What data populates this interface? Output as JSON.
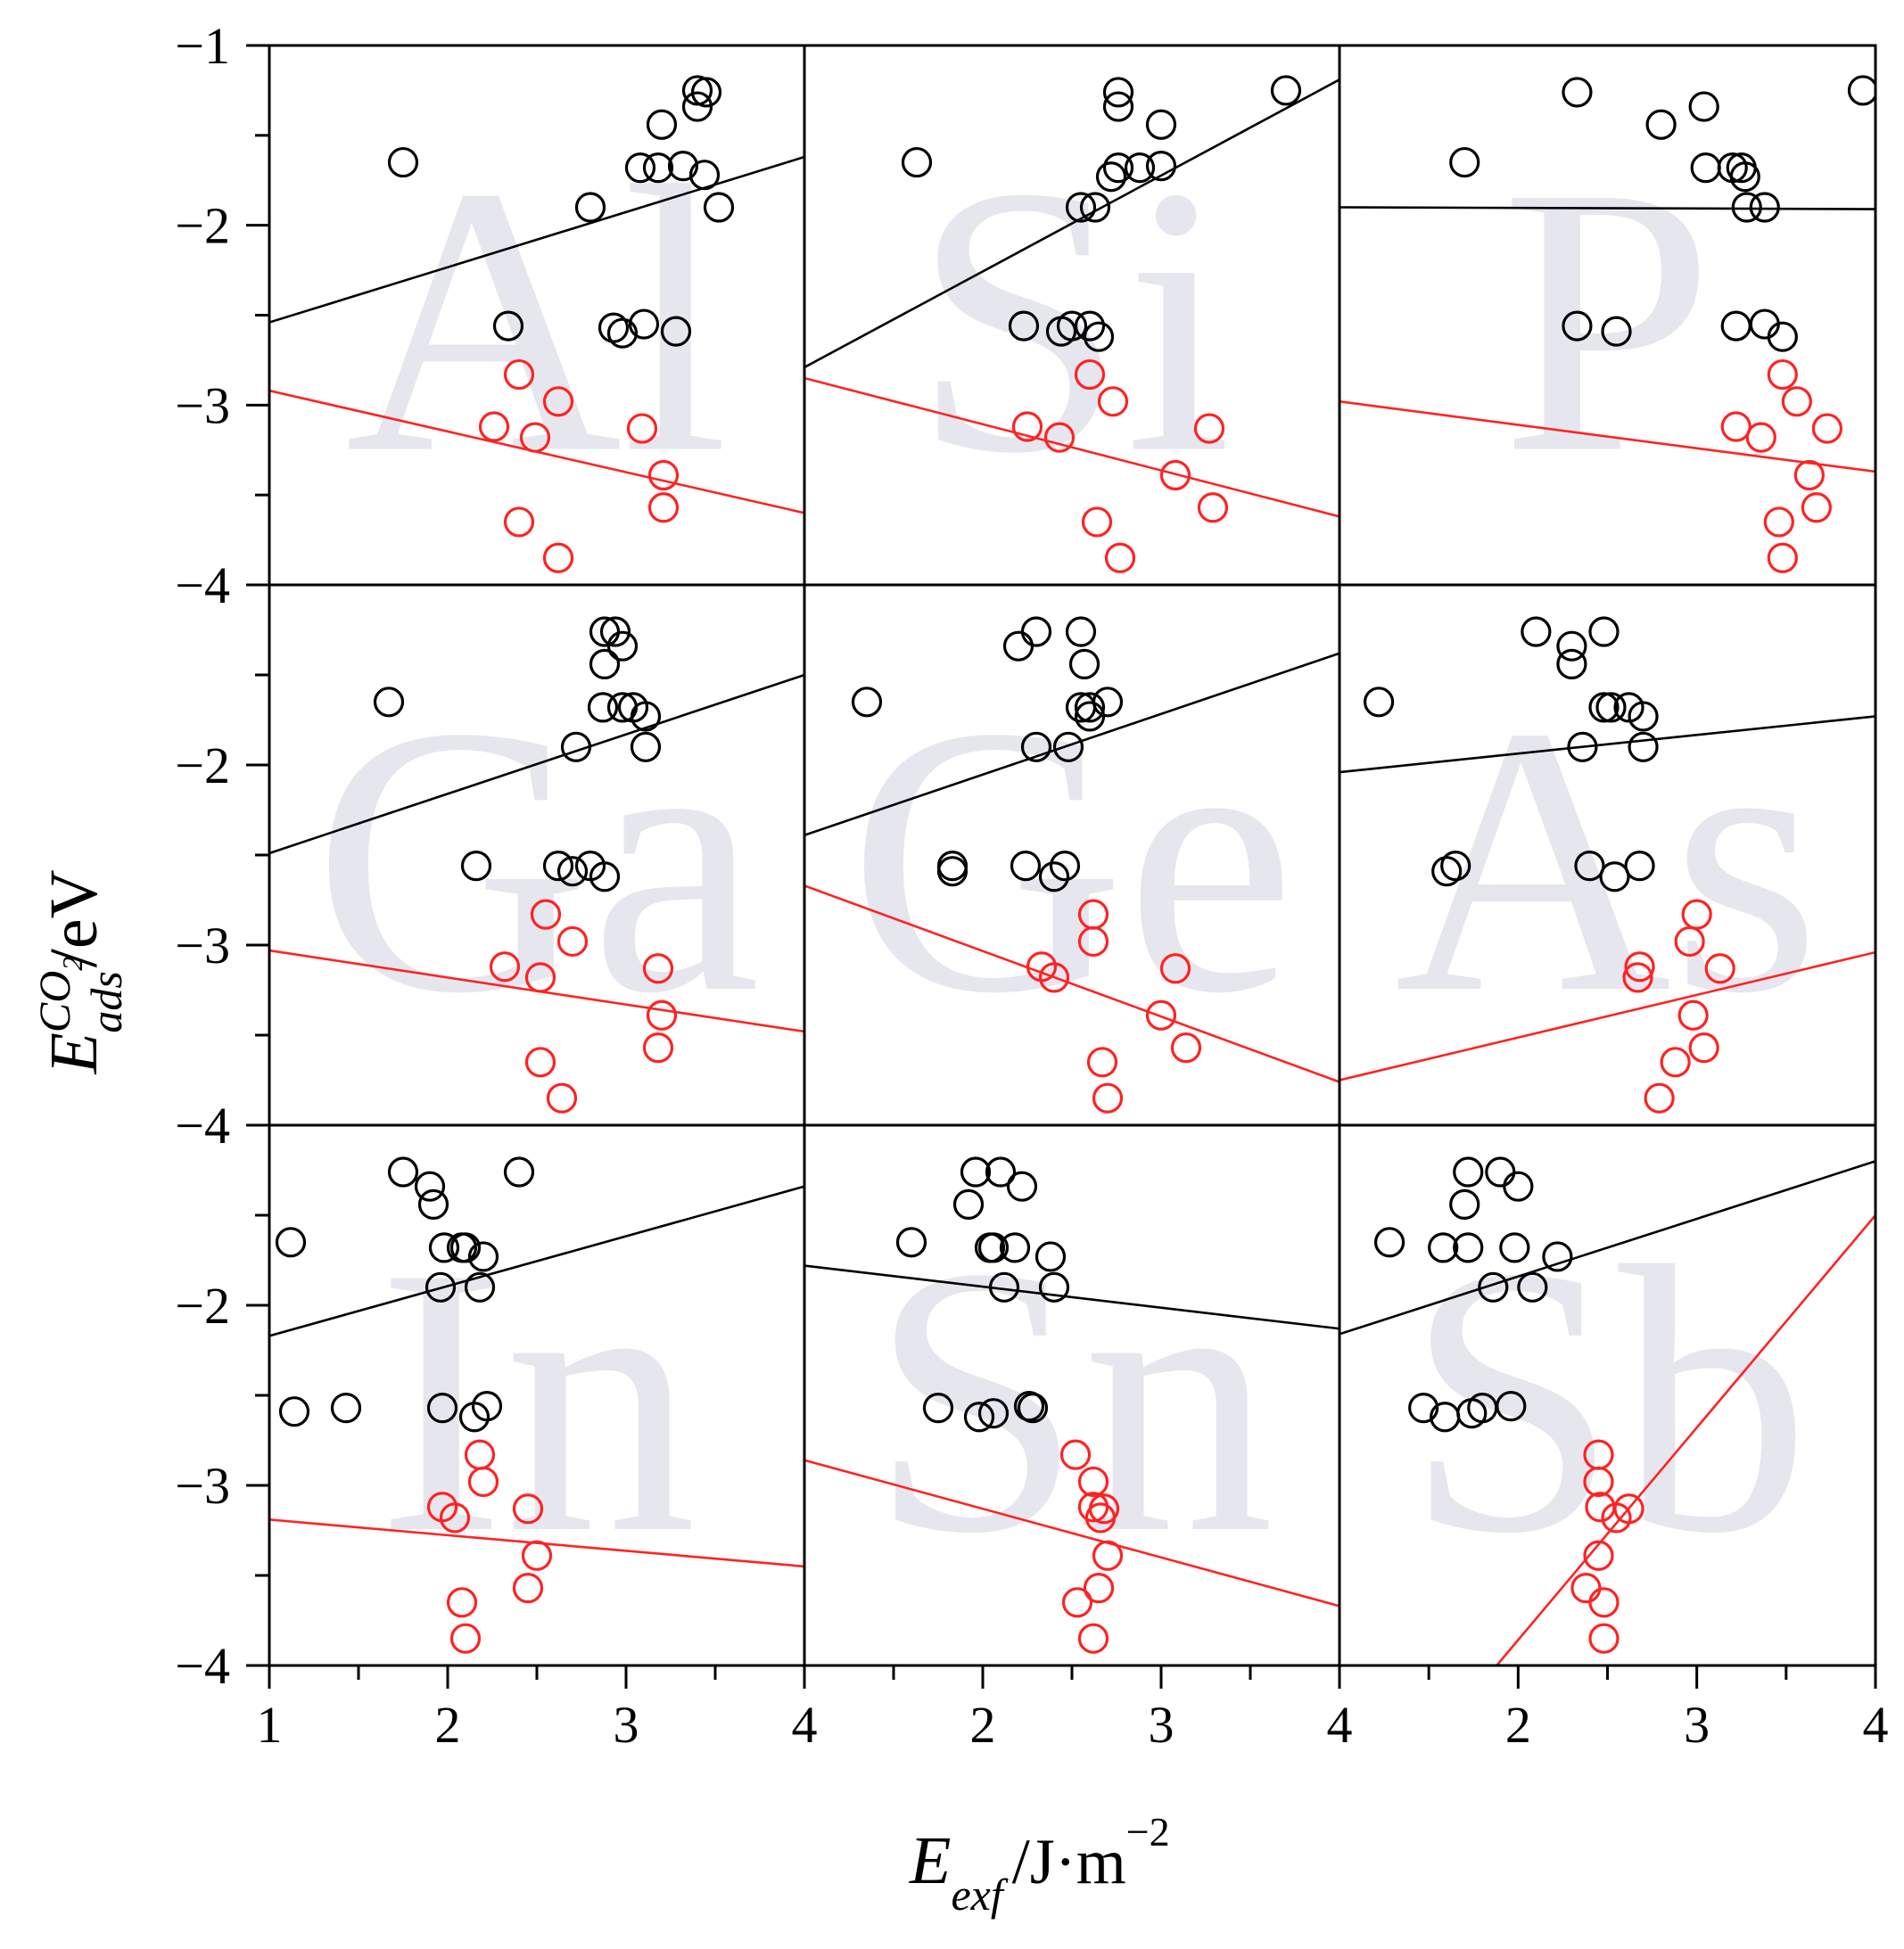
{
  "chart_data": {
    "type": "scatter",
    "layout": "3x3 grid of panels",
    "ylabel": {
      "base": "E",
      "superscript": "CO",
      "superscript_sub": "2",
      "subscript": "ads",
      "unit": "/eV"
    },
    "xlabel": {
      "base": "E",
      "subscript": "exf",
      "unit": "/J·m",
      "unit_exponent": "−2"
    },
    "ylim": [
      -4,
      -1
    ],
    "y_ticks": [
      "−1",
      "−2",
      "−3",
      "−4"
    ],
    "x_ticks": [
      "1",
      "2",
      "3",
      "4"
    ],
    "series_colors": {
      "black": "#000000",
      "red": "#ff2222"
    },
    "panels": [
      {
        "label": "Al",
        "xlim": [
          1,
          4
        ],
        "black_points": [
          [
            1.75,
            -1.65
          ],
          [
            2.8,
            -1.9
          ],
          [
            3.08,
            -1.68
          ],
          [
            3.18,
            -1.68
          ],
          [
            3.2,
            -1.44
          ],
          [
            3.32,
            -1.67
          ],
          [
            3.4,
            -1.34
          ],
          [
            3.4,
            -1.25
          ],
          [
            3.45,
            -1.26
          ],
          [
            3.44,
            -1.72
          ],
          [
            3.52,
            -1.9
          ],
          [
            2.34,
            -2.56
          ],
          [
            2.93,
            -2.57
          ],
          [
            2.98,
            -2.6
          ],
          [
            3.1,
            -2.55
          ],
          [
            3.28,
            -2.59
          ]
        ],
        "red_points": [
          [
            2.4,
            -2.83
          ],
          [
            2.62,
            -2.98
          ],
          [
            2.26,
            -3.12
          ],
          [
            2.49,
            -3.18
          ],
          [
            3.09,
            -3.13
          ],
          [
            3.21,
            -3.39
          ],
          [
            3.21,
            -3.57
          ],
          [
            2.4,
            -3.65
          ],
          [
            2.62,
            -3.85
          ]
        ],
        "black_fit": [
          [
            1,
            -2.54
          ],
          [
            4,
            -1.62
          ]
        ],
        "red_fit": [
          [
            1,
            -2.92
          ],
          [
            4,
            -3.6
          ]
        ]
      },
      {
        "label": "Si",
        "xlim": [
          1,
          4
        ],
        "black_points": [
          [
            1.63,
            -1.65
          ],
          [
            2.55,
            -1.9
          ],
          [
            2.63,
            -1.9
          ],
          [
            2.72,
            -1.73
          ],
          [
            2.76,
            -1.68
          ],
          [
            2.76,
            -1.34
          ],
          [
            2.76,
            -1.26
          ],
          [
            2.88,
            -1.68
          ],
          [
            3,
            -1.44
          ],
          [
            3,
            -1.67
          ],
          [
            3.7,
            -1.25
          ],
          [
            2.23,
            -2.56
          ],
          [
            2.44,
            -2.59
          ],
          [
            2.5,
            -2.56
          ],
          [
            2.6,
            -2.56
          ],
          [
            2.65,
            -2.62
          ]
        ],
        "red_points": [
          [
            2.6,
            -2.83
          ],
          [
            2.73,
            -2.98
          ],
          [
            2.25,
            -3.12
          ],
          [
            2.43,
            -3.18
          ],
          [
            3.27,
            -3.13
          ],
          [
            3.08,
            -3.39
          ],
          [
            3.29,
            -3.57
          ],
          [
            2.64,
            -3.65
          ],
          [
            2.77,
            -3.85
          ]
        ],
        "black_fit": [
          [
            1,
            -2.79
          ],
          [
            4,
            -1.19
          ]
        ],
        "red_fit": [
          [
            1,
            -2.85
          ],
          [
            4,
            -3.62
          ]
        ]
      },
      {
        "label": "P",
        "xlim": [
          1,
          4
        ],
        "black_points": [
          [
            1.7,
            -1.65
          ],
          [
            2.33,
            -1.26
          ],
          [
            2.8,
            -1.44
          ],
          [
            3.04,
            -1.34
          ],
          [
            3.05,
            -1.68
          ],
          [
            3.2,
            -1.68
          ],
          [
            3.25,
            -1.68
          ],
          [
            3.27,
            -1.73
          ],
          [
            3.28,
            -1.9
          ],
          [
            3.38,
            -1.9
          ],
          [
            3.93,
            -1.25
          ],
          [
            2.33,
            -2.56
          ],
          [
            2.55,
            -2.59
          ],
          [
            3.22,
            -2.56
          ],
          [
            3.38,
            -2.55
          ],
          [
            3.48,
            -2.62
          ]
        ],
        "red_points": [
          [
            3.48,
            -2.83
          ],
          [
            3.56,
            -2.98
          ],
          [
            3.22,
            -3.12
          ],
          [
            3.36,
            -3.18
          ],
          [
            3.73,
            -3.13
          ],
          [
            3.63,
            -3.39
          ],
          [
            3.67,
            -3.57
          ],
          [
            3.46,
            -3.65
          ],
          [
            3.48,
            -3.85
          ]
        ],
        "black_fit": [
          [
            1,
            -1.9
          ],
          [
            4,
            -1.91
          ]
        ],
        "red_fit": [
          [
            1,
            -2.98
          ],
          [
            4,
            -3.37
          ]
        ]
      },
      {
        "label": "Ga",
        "xlim": [
          1,
          4
        ],
        "black_points": [
          [
            1.67,
            -1.65
          ],
          [
            2.72,
            -1.9
          ],
          [
            2.88,
            -1.26
          ],
          [
            2.88,
            -1.44
          ],
          [
            2.87,
            -1.68
          ],
          [
            2.94,
            -1.26
          ],
          [
            2.98,
            -1.34
          ],
          [
            2.98,
            -1.68
          ],
          [
            3.04,
            -1.68
          ],
          [
            3.11,
            -1.73
          ],
          [
            3.11,
            -1.9
          ],
          [
            2.16,
            -2.56
          ],
          [
            2.62,
            -2.56
          ],
          [
            2.7,
            -2.59
          ],
          [
            2.8,
            -2.56
          ],
          [
            2.88,
            -2.62
          ]
        ],
        "red_points": [
          [
            2.55,
            -2.83
          ],
          [
            2.7,
            -2.98
          ],
          [
            2.32,
            -3.12
          ],
          [
            2.52,
            -3.18
          ],
          [
            3.18,
            -3.13
          ],
          [
            3.2,
            -3.39
          ],
          [
            3.18,
            -3.57
          ],
          [
            2.52,
            -3.65
          ],
          [
            2.64,
            -3.85
          ]
        ],
        "black_fit": [
          [
            1,
            -2.49
          ],
          [
            4,
            -1.5
          ]
        ],
        "red_fit": [
          [
            1,
            -3.03
          ],
          [
            4,
            -3.48
          ]
        ]
      },
      {
        "label": "Ge",
        "xlim": [
          1,
          4
        ],
        "black_points": [
          [
            1.35,
            -1.65
          ],
          [
            2.3,
            -1.9
          ],
          [
            2.48,
            -1.9
          ],
          [
            2.2,
            -1.34
          ],
          [
            2.3,
            -1.26
          ],
          [
            2.55,
            -1.26
          ],
          [
            2.57,
            -1.44
          ],
          [
            2.55,
            -1.68
          ],
          [
            2.6,
            -1.73
          ],
          [
            2.6,
            -1.68
          ],
          [
            2.7,
            -1.65
          ],
          [
            1.83,
            -2.56
          ],
          [
            1.83,
            -2.59
          ],
          [
            2.24,
            -2.56
          ],
          [
            2.46,
            -2.56
          ],
          [
            2.4,
            -2.62
          ]
        ],
        "red_points": [
          [
            2.62,
            -2.83
          ],
          [
            2.62,
            -2.98
          ],
          [
            2.33,
            -3.12
          ],
          [
            2.4,
            -3.18
          ],
          [
            3.08,
            -3.13
          ],
          [
            3.0,
            -3.39
          ],
          [
            3.14,
            -3.57
          ],
          [
            2.67,
            -3.65
          ],
          [
            2.7,
            -3.85
          ]
        ],
        "black_fit": [
          [
            1,
            -2.39
          ],
          [
            4,
            -1.38
          ]
        ],
        "red_fit": [
          [
            1,
            -2.67
          ],
          [
            4,
            -3.76
          ]
        ]
      },
      {
        "label": "As",
        "xlim": [
          1,
          4
        ],
        "black_points": [
          [
            1.22,
            -1.65
          ],
          [
            2.1,
            -1.26
          ],
          [
            2.3,
            -1.34
          ],
          [
            2.3,
            -1.44
          ],
          [
            2.48,
            -1.26
          ],
          [
            2.36,
            -1.9
          ],
          [
            2.48,
            -1.68
          ],
          [
            2.52,
            -1.68
          ],
          [
            2.62,
            -1.68
          ],
          [
            2.7,
            -1.73
          ],
          [
            2.7,
            -1.9
          ],
          [
            1.65,
            -2.56
          ],
          [
            1.6,
            -2.59
          ],
          [
            2.4,
            -2.56
          ],
          [
            2.54,
            -2.62
          ],
          [
            2.68,
            -2.56
          ]
        ],
        "red_points": [
          [
            3.0,
            -2.83
          ],
          [
            2.96,
            -2.98
          ],
          [
            2.68,
            -3.12
          ],
          [
            2.67,
            -3.18
          ],
          [
            3.13,
            -3.13
          ],
          [
            2.98,
            -3.39
          ],
          [
            3.04,
            -3.57
          ],
          [
            2.88,
            -3.65
          ],
          [
            2.79,
            -3.85
          ]
        ],
        "black_fit": [
          [
            1,
            -2.04
          ],
          [
            4,
            -1.73
          ]
        ],
        "red_fit": [
          [
            1,
            -3.75
          ],
          [
            4,
            -3.04
          ]
        ]
      },
      {
        "label": "In",
        "xlim": [
          1,
          4
        ],
        "black_points": [
          [
            1.12,
            -1.65
          ],
          [
            1.75,
            -1.26
          ],
          [
            1.9,
            -1.34
          ],
          [
            1.92,
            -1.44
          ],
          [
            1.98,
            -1.68
          ],
          [
            2.08,
            -1.68
          ],
          [
            2.1,
            -1.68
          ],
          [
            2.2,
            -1.73
          ],
          [
            1.96,
            -1.9
          ],
          [
            2.18,
            -1.9
          ],
          [
            2.4,
            -1.26
          ],
          [
            1.14,
            -2.59
          ],
          [
            1.43,
            -2.57
          ],
          [
            1.97,
            -2.57
          ],
          [
            2.15,
            -2.62
          ],
          [
            2.22,
            -2.56
          ]
        ],
        "red_points": [
          [
            2.18,
            -2.83
          ],
          [
            2.2,
            -2.98
          ],
          [
            1.97,
            -3.12
          ],
          [
            2.04,
            -3.18
          ],
          [
            2.45,
            -3.13
          ],
          [
            2.5,
            -3.39
          ],
          [
            2.45,
            -3.57
          ],
          [
            2.08,
            -3.65
          ],
          [
            2.1,
            -3.85
          ]
        ],
        "black_fit": [
          [
            1,
            -2.17
          ],
          [
            4,
            -1.34
          ]
        ],
        "red_fit": [
          [
            1,
            -3.19
          ],
          [
            4,
            -3.45
          ]
        ]
      },
      {
        "label": "Sn",
        "xlim": [
          1,
          4
        ],
        "black_points": [
          [
            1.6,
            -1.65
          ],
          [
            1.96,
            -1.26
          ],
          [
            2.1,
            -1.26
          ],
          [
            2.22,
            -1.34
          ],
          [
            1.92,
            -1.44
          ],
          [
            2.04,
            -1.68
          ],
          [
            2.06,
            -1.68
          ],
          [
            2.18,
            -1.68
          ],
          [
            2.38,
            -1.73
          ],
          [
            2.12,
            -1.9
          ],
          [
            2.4,
            -1.9
          ],
          [
            1.75,
            -2.57
          ],
          [
            1.98,
            -2.62
          ],
          [
            2.06,
            -2.6
          ],
          [
            2.26,
            -2.56
          ],
          [
            2.28,
            -2.57
          ]
        ],
        "red_points": [
          [
            2.52,
            -2.83
          ],
          [
            2.62,
            -2.98
          ],
          [
            2.62,
            -3.12
          ],
          [
            2.66,
            -3.18
          ],
          [
            2.68,
            -3.13
          ],
          [
            2.7,
            -3.39
          ],
          [
            2.65,
            -3.57
          ],
          [
            2.53,
            -3.65
          ],
          [
            2.62,
            -3.85
          ]
        ],
        "black_fit": [
          [
            1,
            -1.78
          ],
          [
            4,
            -2.13
          ]
        ],
        "red_fit": [
          [
            1,
            -2.86
          ],
          [
            4,
            -3.67
          ]
        ]
      },
      {
        "label": "Sb",
        "xlim": [
          1,
          4
        ],
        "black_points": [
          [
            1.28,
            -1.65
          ],
          [
            1.58,
            -1.68
          ],
          [
            1.7,
            -1.44
          ],
          [
            1.72,
            -1.26
          ],
          [
            1.72,
            -1.68
          ],
          [
            1.9,
            -1.26
          ],
          [
            2.0,
            -1.34
          ],
          [
            1.98,
            -1.68
          ],
          [
            1.86,
            -1.9
          ],
          [
            2.08,
            -1.9
          ],
          [
            2.22,
            -1.73
          ],
          [
            1.47,
            -2.57
          ],
          [
            1.59,
            -2.62
          ],
          [
            1.74,
            -2.6
          ],
          [
            1.8,
            -2.57
          ],
          [
            1.96,
            -2.56
          ]
        ],
        "red_points": [
          [
            2.45,
            -2.83
          ],
          [
            2.45,
            -2.98
          ],
          [
            2.46,
            -3.12
          ],
          [
            2.55,
            -3.18
          ],
          [
            2.62,
            -3.13
          ],
          [
            2.45,
            -3.39
          ],
          [
            2.38,
            -3.57
          ],
          [
            2.48,
            -3.65
          ],
          [
            2.48,
            -3.85
          ]
        ],
        "black_fit": [
          [
            1,
            -2.16
          ],
          [
            4,
            -1.2
          ]
        ],
        "red_fit": [
          [
            1.88,
            -4.0
          ],
          [
            4,
            -1.5
          ]
        ]
      }
    ]
  }
}
